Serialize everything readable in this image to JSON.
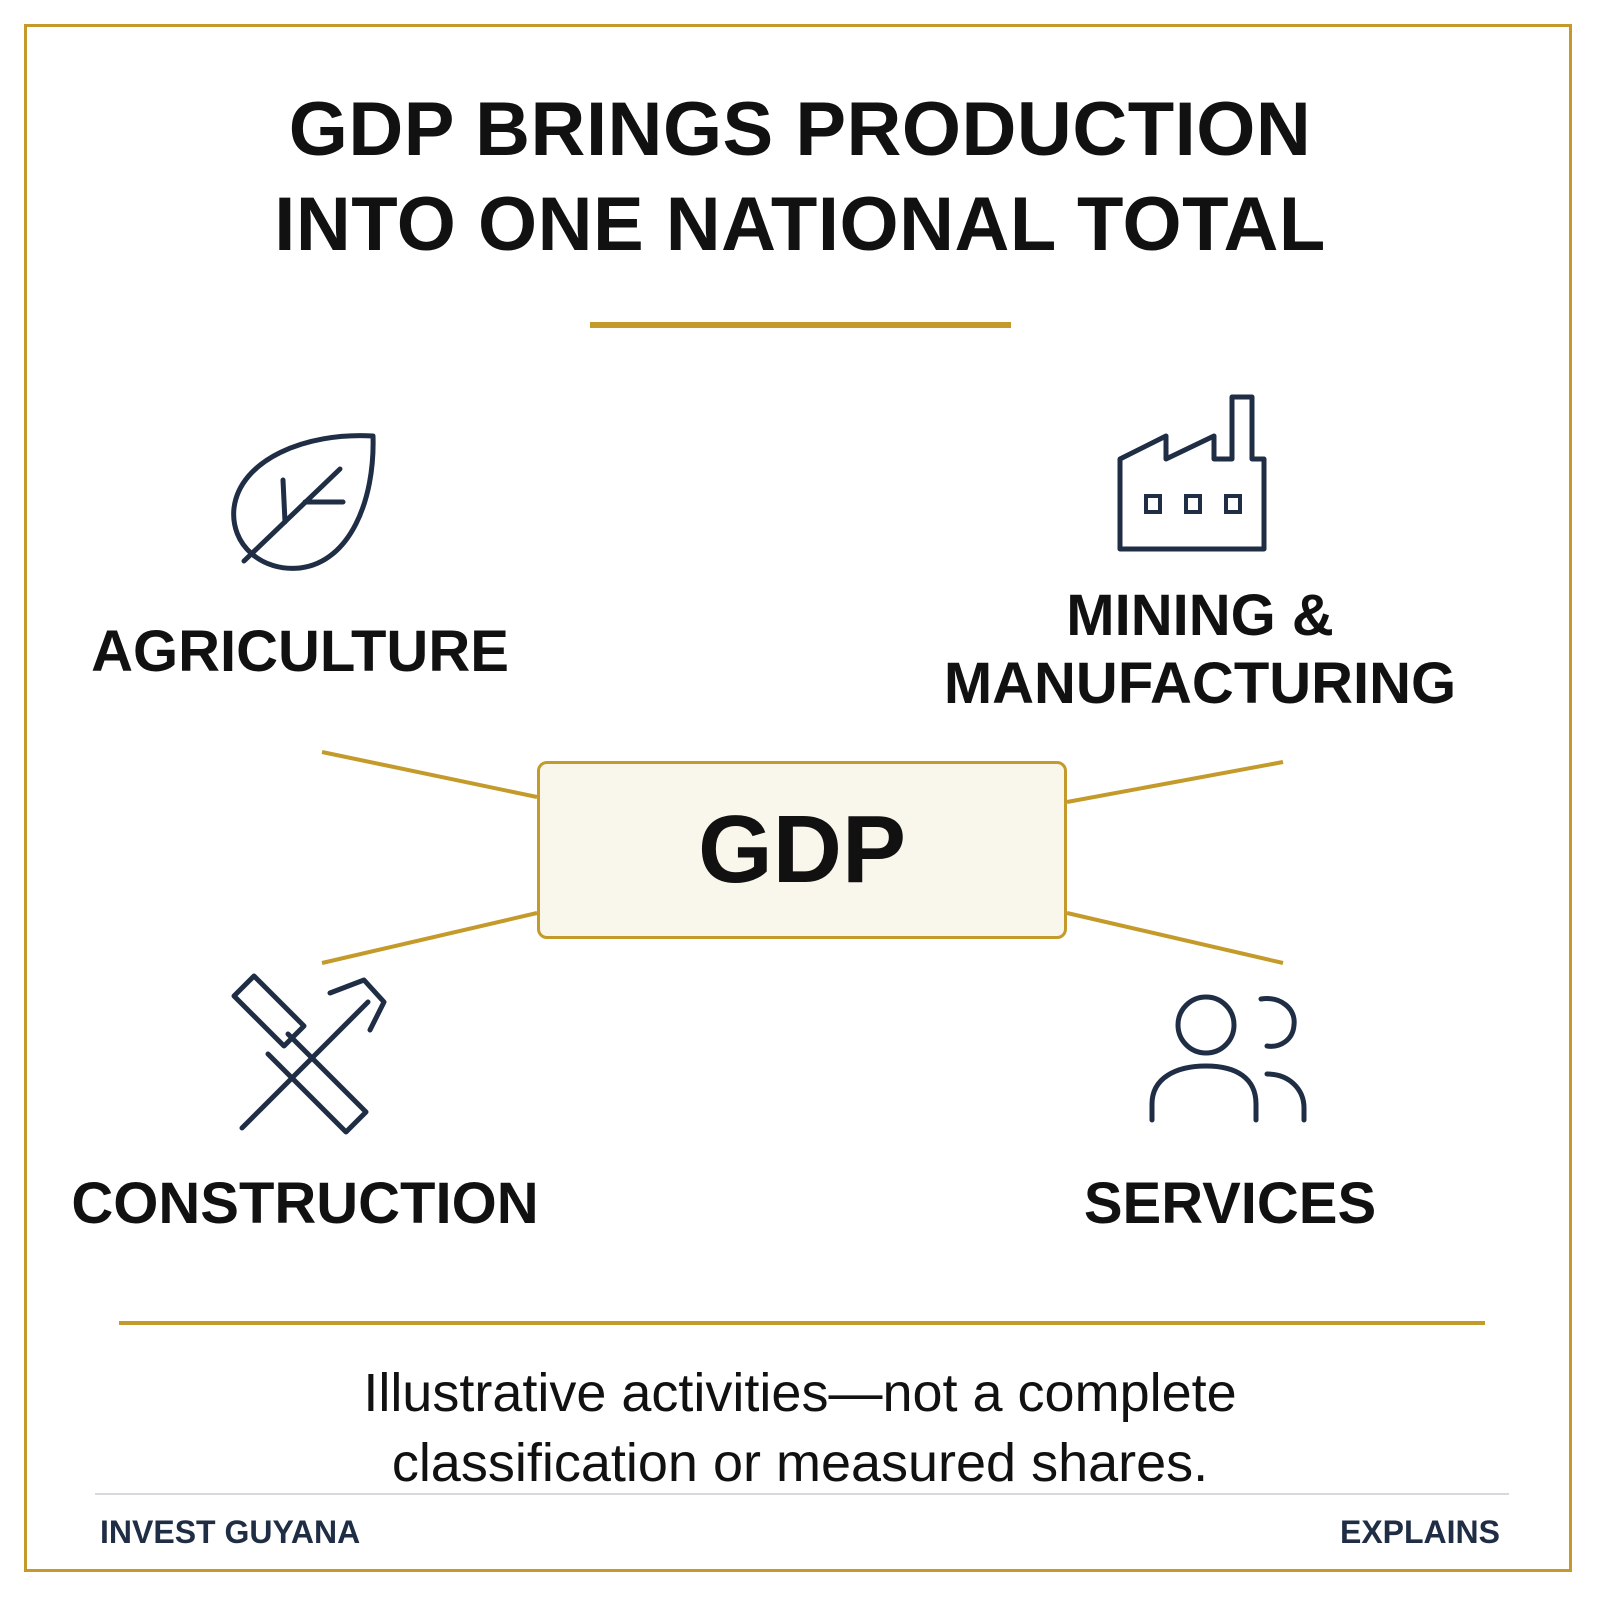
{
  "title": {
    "line1": "GDP BRINGS PRODUCTION",
    "line2": "INTO ONE NATIONAL TOTAL"
  },
  "center": {
    "label": "GDP"
  },
  "sectors": {
    "agriculture": {
      "label": "AGRICULTURE",
      "icon": "leaf-icon"
    },
    "mining": {
      "label_line1": "MINING &",
      "label_line2": "MANUFACTURING",
      "icon": "factory-icon"
    },
    "construction": {
      "label": "CONSTRUCTION",
      "icon": "tools-icon"
    },
    "services": {
      "label": "SERVICES",
      "icon": "people-icon"
    }
  },
  "note": {
    "line1": "Illustrative activities—not a complete",
    "line2": "classification or measured shares."
  },
  "footer": {
    "left": "INVEST GUYANA",
    "right": "EXPLAINS"
  },
  "colors": {
    "accent": "#c49a2a",
    "icon": "#1f2d45",
    "text": "#111111",
    "box_fill": "#f9f6ec"
  }
}
